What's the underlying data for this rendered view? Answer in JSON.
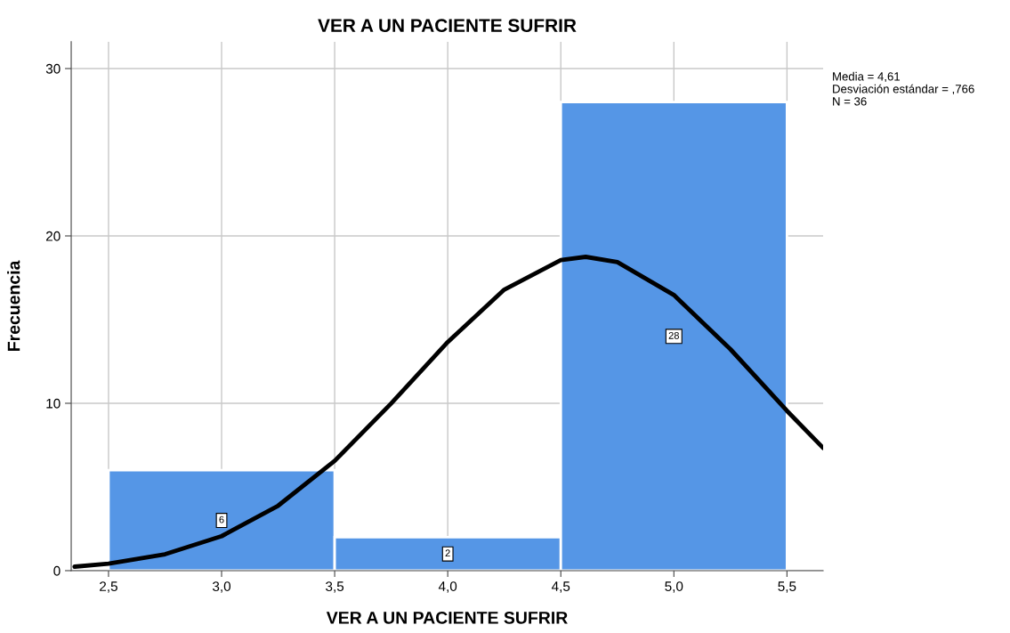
{
  "chart_data": {
    "type": "histogram",
    "title": "VER A UN PACIENTE SUFRIR",
    "xlabel": "VER A UN PACIENTE SUFRIR",
    "ylabel": "Frecuencia",
    "bins": [
      2.5,
      3.5,
      4.5,
      5.5
    ],
    "values": [
      6,
      2,
      28
    ],
    "value_labels": [
      "6",
      "2",
      "28"
    ],
    "color": "#5596e6",
    "series": [
      {
        "type": "line",
        "color": "#000000",
        "x": [
          2.35,
          2.5,
          2.75,
          3.0,
          3.25,
          3.5,
          3.75,
          4.0,
          4.25,
          4.5,
          4.61,
          4.75,
          5.0,
          5.25,
          5.5,
          5.66
        ],
        "values": [
          0.24,
          0.42,
          0.98,
          2.06,
          3.88,
          6.56,
          9.99,
          13.66,
          16.79,
          18.56,
          18.75,
          18.44,
          16.47,
          13.23,
          9.55,
          7.33
        ]
      }
    ],
    "xlim": [
      2.335,
      5.66
    ],
    "ylim": [
      0,
      31.6
    ],
    "xticks": [
      {
        "value": 2.5,
        "label": "2,5"
      },
      {
        "value": 3.0,
        "label": "3,0"
      },
      {
        "value": 3.5,
        "label": "3,5"
      },
      {
        "value": 4.0,
        "label": "4,0"
      },
      {
        "value": 4.5,
        "label": "4,5"
      },
      {
        "value": 5.0,
        "label": "5,0"
      },
      {
        "value": 5.5,
        "label": "5,5"
      }
    ],
    "yticks": [
      0,
      10,
      20,
      30
    ],
    "grid": true,
    "annotations": [
      "Media = 4,61",
      "Desviación estándar = ,766",
      "N = 36"
    ]
  }
}
